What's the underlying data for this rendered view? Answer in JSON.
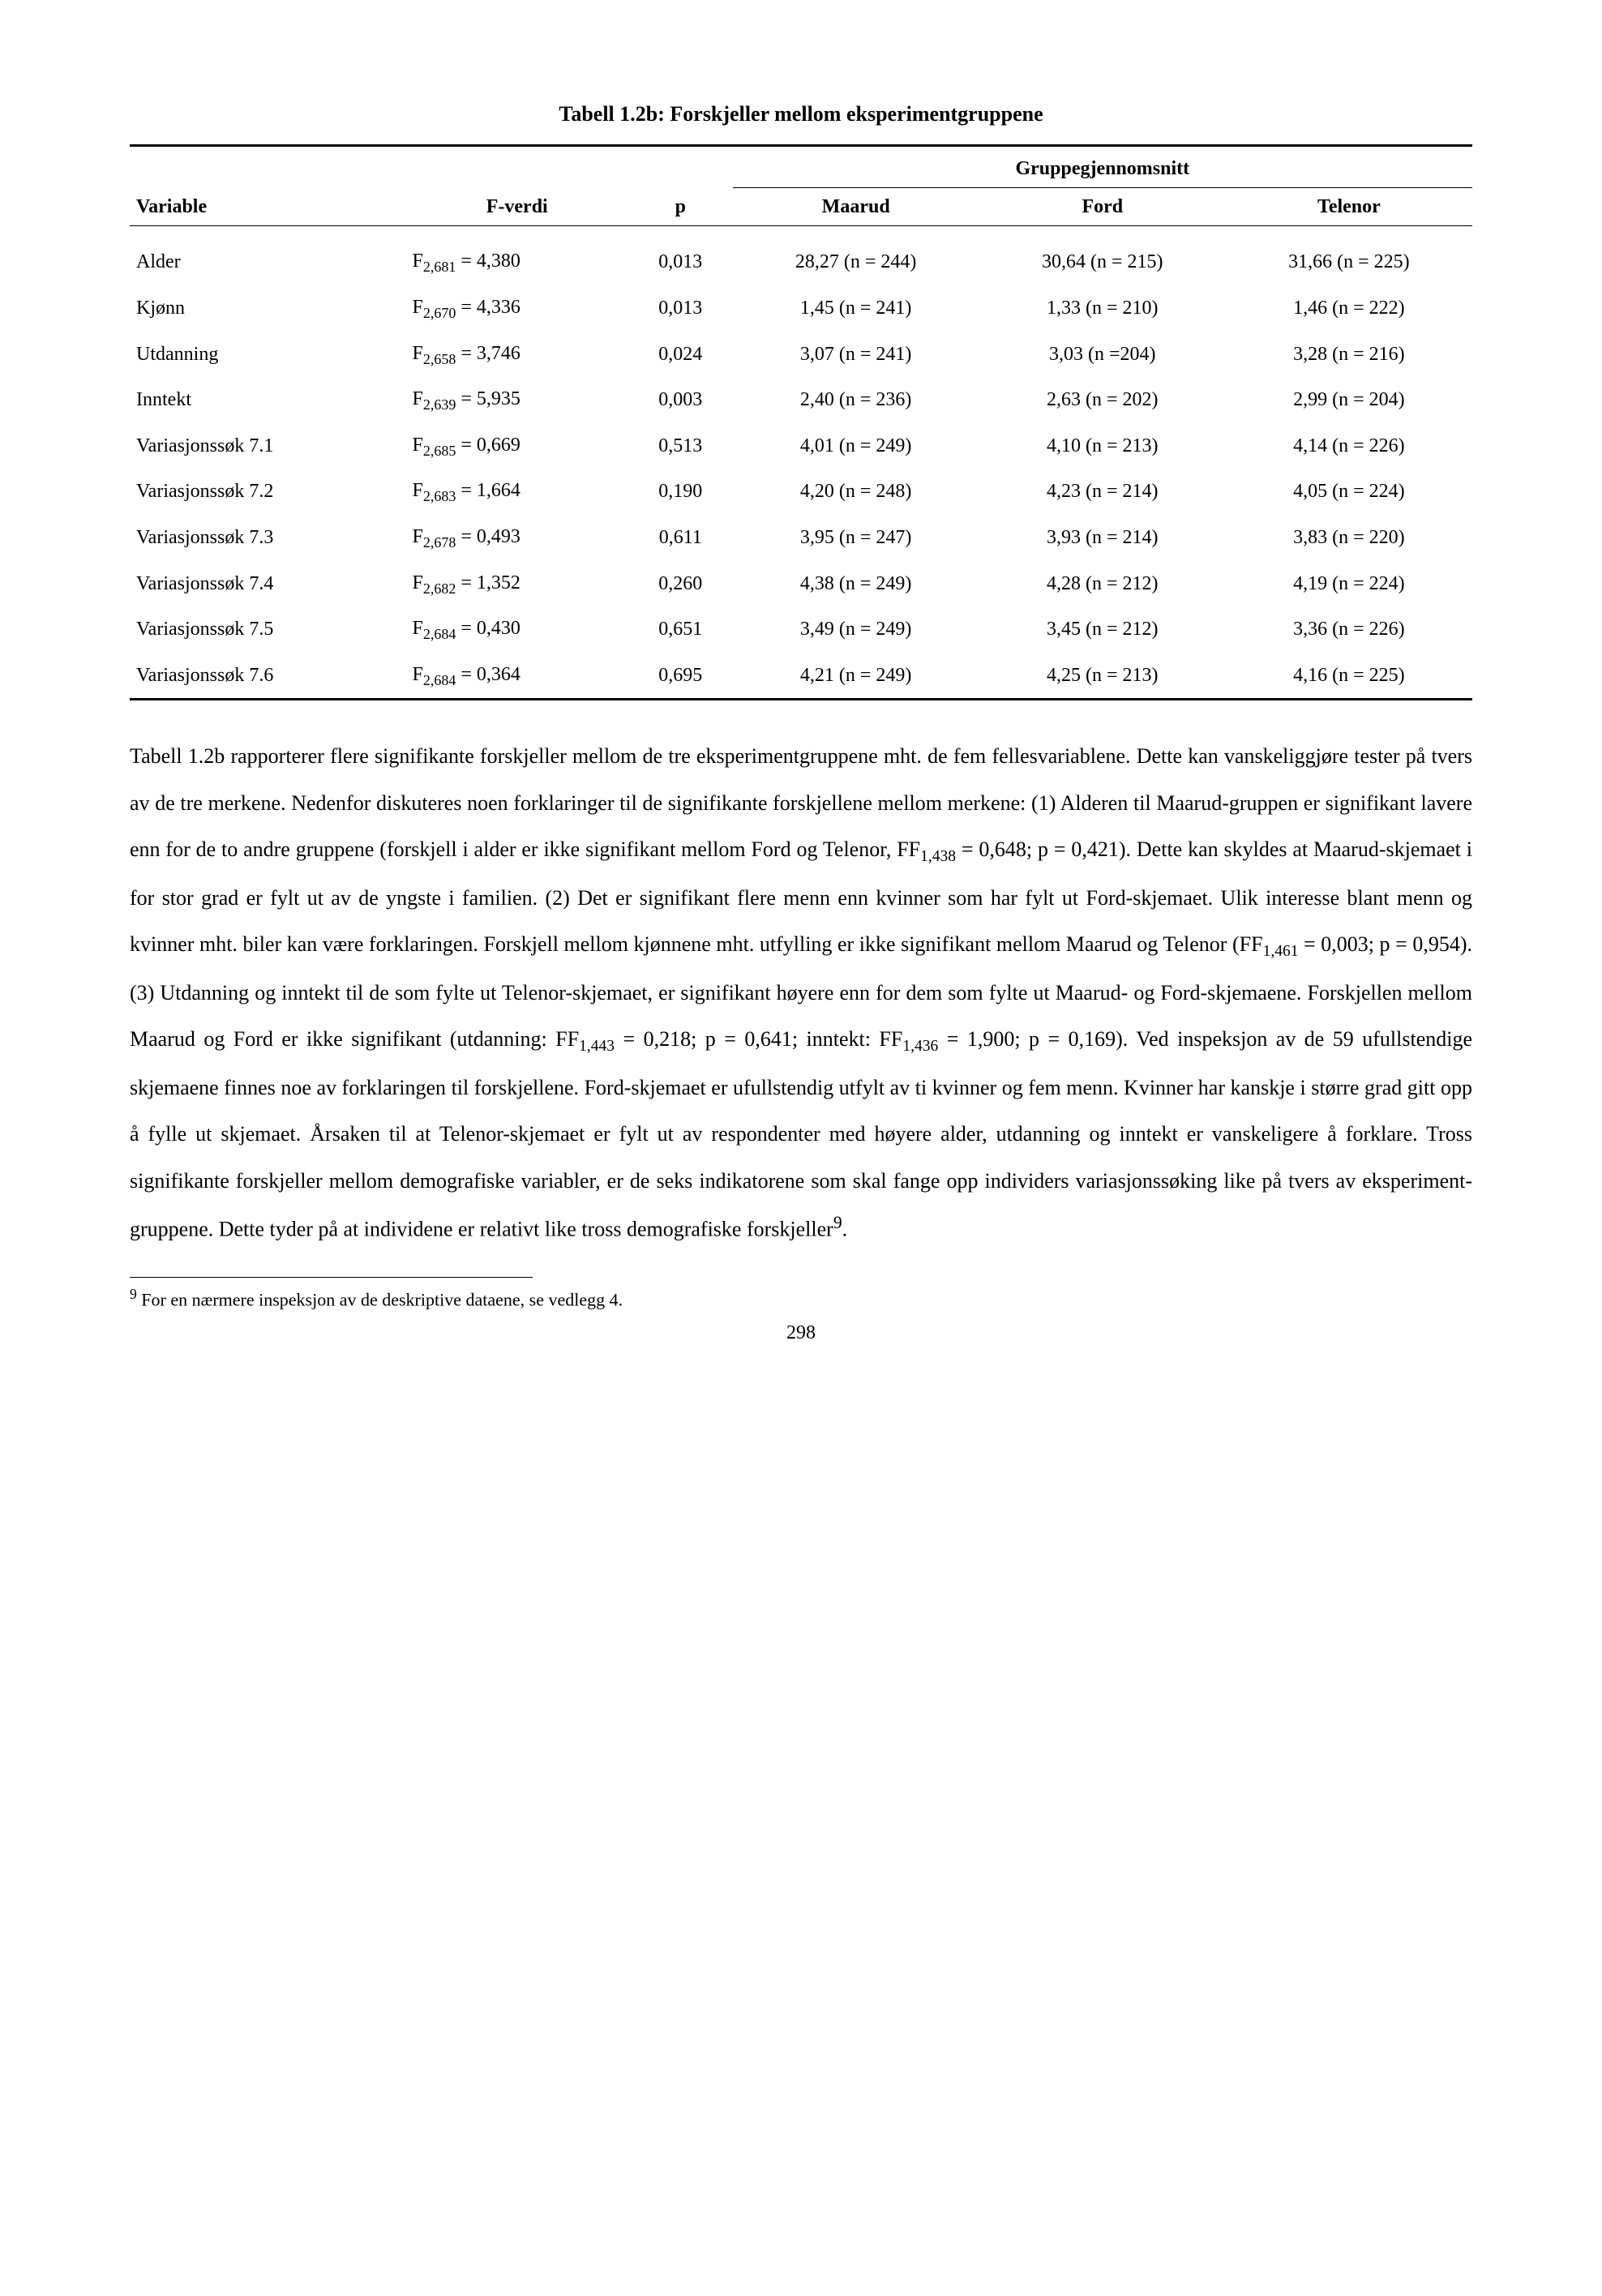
{
  "table": {
    "caption": "Tabell 1.2b: Forskjeller mellom eksperimentgruppene",
    "group_header": "Gruppegjennomsnitt",
    "columns": {
      "variable": "Variable",
      "fvalue": "F-verdi",
      "p": "p",
      "maarud": "Maarud",
      "ford": "Ford",
      "telenor": "Telenor"
    },
    "rows": [
      {
        "variable": "Alder",
        "f_sub": "2,681",
        "f_val": "4,380",
        "p": "0,013",
        "maarud": "28,27 (n = 244)",
        "ford": "30,64 (n = 215)",
        "telenor": "31,66 (n = 225)"
      },
      {
        "variable": "Kjønn",
        "f_sub": "2,670",
        "f_val": "4,336",
        "p": "0,013",
        "maarud": "1,45 (n = 241)",
        "ford": "1,33 (n = 210)",
        "telenor": "1,46 (n = 222)"
      },
      {
        "variable": "Utdanning",
        "f_sub": "2,658",
        "f_val": "3,746",
        "p": "0,024",
        "maarud": "3,07 (n = 241)",
        "ford": "3,03 (n =204)",
        "telenor": "3,28 (n = 216)"
      },
      {
        "variable": "Inntekt",
        "f_sub": "2,639",
        "f_val": "5,935",
        "p": "0,003",
        "maarud": "2,40 (n = 236)",
        "ford": "2,63 (n = 202)",
        "telenor": "2,99 (n = 204)"
      },
      {
        "variable": "Variasjonssøk 7.1",
        "f_sub": "2,685",
        "f_val": "0,669",
        "p": "0,513",
        "maarud": "4,01 (n = 249)",
        "ford": "4,10 (n = 213)",
        "telenor": "4,14 (n = 226)"
      },
      {
        "variable": "Variasjonssøk 7.2",
        "f_sub": "2,683",
        "f_val": "1,664",
        "p": "0,190",
        "maarud": "4,20 (n = 248)",
        "ford": "4,23 (n = 214)",
        "telenor": "4,05 (n = 224)"
      },
      {
        "variable": "Variasjonssøk 7.3",
        "f_sub": "2,678",
        "f_val": "0,493",
        "p": "0,611",
        "maarud": "3,95 (n = 247)",
        "ford": "3,93 (n = 214)",
        "telenor": "3,83 (n = 220)"
      },
      {
        "variable": "Variasjonssøk 7.4",
        "f_sub": "2,682",
        "f_val": "1,352",
        "p": "0,260",
        "maarud": "4,38 (n = 249)",
        "ford": "4,28 (n = 212)",
        "telenor": "4,19 (n = 224)"
      },
      {
        "variable": "Variasjonssøk 7.5",
        "f_sub": "2,684",
        "f_val": "0,430",
        "p": "0,651",
        "maarud": "3,49 (n = 249)",
        "ford": "3,45 (n = 212)",
        "telenor": "3,36 (n = 226)"
      },
      {
        "variable": "Variasjonssøk 7.6",
        "f_sub": "2,684",
        "f_val": "0,364",
        "p": "0,695",
        "maarud": "4,21 (n = 249)",
        "ford": "4,25 (n = 213)",
        "telenor": "4,16 (n = 225)"
      }
    ]
  },
  "body": {
    "p1_a": "Tabell 1.2b rapporterer flere signifikante forskjeller mellom de tre eksperimentgruppene mht. de fem fellesvariablene. Dette kan vanskeliggjøre tester på tvers av de tre merkene. Nedenfor diskuteres noen forklaringer til de signifikante forskjellene mellom merkene: (1) Alderen til Maarud-gruppen er signifikant lavere enn for de to andre gruppene (forskjell i alder er ikke signifikant mellom Ford og Telenor, F",
    "p1_f1_sub": "1,438",
    "p1_b": " = 0,648; p = 0,421). Dette kan skyldes at Maarud-skjemaet i for stor grad er fylt ut av de yngste i familien. (2) Det er signifikant flere menn enn kvinner som har fylt ut Ford-skjemaet. Ulik interesse blant menn og kvinner mht. biler kan være forklaringen. Forskjell mellom kjønnene mht. utfylling er ikke signifikant mellom Maarud og Telenor (F",
    "p1_f2_sub": "1,461",
    "p1_c": " = 0,003; p = 0,954). (3) Utdanning og inntekt til de som fylte ut Telenor-skjemaet, er signifikant høyere enn for dem som fylte ut Maarud- og Ford-skjemaene. Forskjellen mellom Maarud og Ford er ikke signifikant (utdanning: F",
    "p1_f3_sub": "1,443",
    "p1_d": " = 0,218; p = 0,641; inntekt: F",
    "p1_f4_sub": "1,436",
    "p1_e": " = 1,900; p = 0,169). Ved inspeksjon av de 59 ufullstendige skjemaene finnes noe av forklaringen til forskjellene. Ford-skjemaet er ufullstendig utfylt av ti kvinner og fem menn. Kvinner har kanskje i større grad gitt opp å fylle ut skjemaet. Årsaken til at Telenor-skjemaet er fylt ut av respondenter med høyere alder, utdanning og inntekt er vanskeligere å forklare. Tross signifikante forskjeller mellom demografiske variabler, er de seks indikatorene som skal fange opp individers variasjonssøking like på tvers av eksperiment-gruppene. Dette tyder på at individene er relativt like tross demografiske forskjeller",
    "p1_fn_marker": "9",
    "p1_end": "."
  },
  "footnote": {
    "marker": "9",
    "text": " For en nærmere inspeksjon av de deskriptive dataene, se vedlegg 4."
  },
  "page_number": "298"
}
